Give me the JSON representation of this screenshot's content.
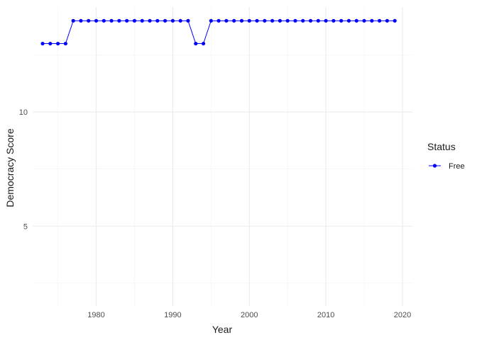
{
  "chart_data": {
    "type": "line",
    "title": "",
    "xlabel": "Year",
    "ylabel": "Democracy Score",
    "xlim": [
      1971.7,
      2021.3
    ],
    "ylim": [
      1.5,
      14.6
    ],
    "x_ticks": [
      1980,
      1990,
      2000,
      2010,
      2020
    ],
    "y_ticks": [
      5,
      10
    ],
    "grid": true,
    "legend": {
      "title": "Status",
      "placement": "right"
    },
    "series": [
      {
        "name": "Free",
        "color": "#0000ff",
        "x": [
          1973,
          1974,
          1975,
          1976,
          1977,
          1978,
          1979,
          1980,
          1981,
          1982,
          1983,
          1984,
          1985,
          1986,
          1987,
          1988,
          1989,
          1990,
          1991,
          1992,
          1993,
          1994,
          1995,
          1996,
          1997,
          1998,
          1999,
          2000,
          2001,
          2002,
          2003,
          2004,
          2005,
          2006,
          2007,
          2008,
          2009,
          2010,
          2011,
          2012,
          2013,
          2014,
          2015,
          2016,
          2017,
          2018,
          2019
        ],
        "y": [
          13,
          13,
          13,
          13,
          14,
          14,
          14,
          14,
          14,
          14,
          14,
          14,
          14,
          14,
          14,
          14,
          14,
          14,
          14,
          14,
          13,
          13,
          14,
          14,
          14,
          14,
          14,
          14,
          14,
          14,
          14,
          14,
          14,
          14,
          14,
          14,
          14,
          14,
          14,
          14,
          14,
          14,
          14,
          14,
          14,
          14,
          14
        ]
      }
    ]
  }
}
